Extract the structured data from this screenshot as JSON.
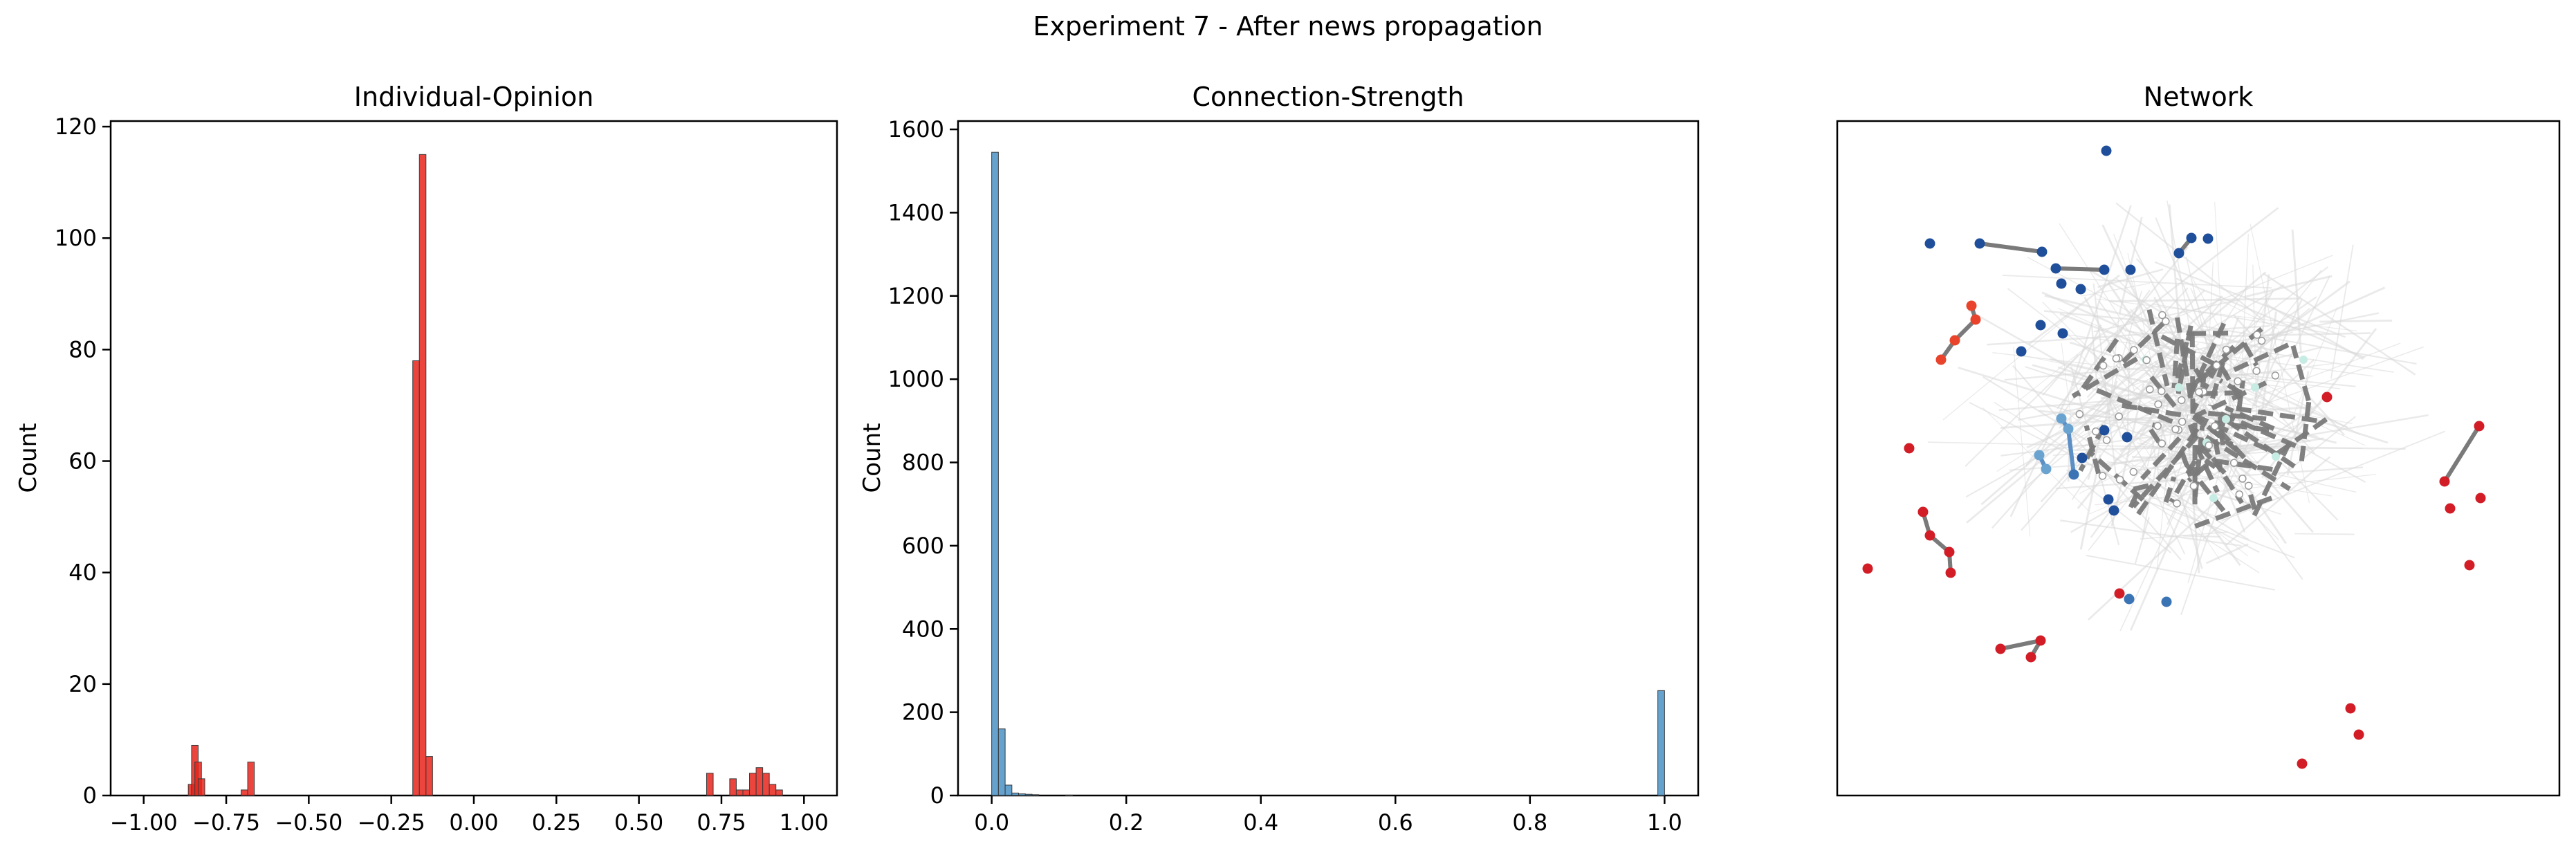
{
  "figure": {
    "suptitle": "Experiment 7 - After news propagation"
  },
  "chart_data": [
    {
      "type": "bar",
      "title": "Individual-Opinion",
      "xlabel": "",
      "ylabel": "Count",
      "xlim": [
        -1.1,
        1.1
      ],
      "ylim": [
        0,
        121
      ],
      "xticks": [
        "-1.00",
        "-0.75",
        "-0.50",
        "-0.25",
        "0.00",
        "0.25",
        "0.50",
        "0.75",
        "1.00"
      ],
      "yticks": [
        "0",
        "20",
        "40",
        "60",
        "80",
        "100",
        "120"
      ],
      "color": "#e8251b",
      "bins": [
        {
          "x": -0.855,
          "count": 2
        },
        {
          "x": -0.845,
          "count": 9
        },
        {
          "x": -0.835,
          "count": 6
        },
        {
          "x": -0.825,
          "count": 3
        },
        {
          "x": -0.695,
          "count": 1
        },
        {
          "x": -0.675,
          "count": 6
        },
        {
          "x": -0.175,
          "count": 78
        },
        {
          "x": -0.155,
          "count": 115
        },
        {
          "x": -0.135,
          "count": 7
        },
        {
          "x": 0.715,
          "count": 4
        },
        {
          "x": 0.785,
          "count": 3
        },
        {
          "x": 0.805,
          "count": 1
        },
        {
          "x": 0.825,
          "count": 1
        },
        {
          "x": 0.845,
          "count": 4
        },
        {
          "x": 0.865,
          "count": 5
        },
        {
          "x": 0.885,
          "count": 4
        },
        {
          "x": 0.905,
          "count": 2
        },
        {
          "x": 0.925,
          "count": 1
        }
      ]
    },
    {
      "type": "bar",
      "title": "Connection-Strength",
      "xlabel": "",
      "ylabel": "Count",
      "xlim": [
        -0.05,
        1.05
      ],
      "ylim": [
        0,
        1620
      ],
      "xticks": [
        "0.0",
        "0.2",
        "0.4",
        "0.6",
        "0.8",
        "1.0"
      ],
      "yticks": [
        "0",
        "200",
        "400",
        "600",
        "800",
        "1000",
        "1200",
        "1400",
        "1600"
      ],
      "color": "#4b92c6",
      "bins": [
        {
          "x": 0.005,
          "count": 1545
        },
        {
          "x": 0.015,
          "count": 160
        },
        {
          "x": 0.025,
          "count": 25
        },
        {
          "x": 0.035,
          "count": 6
        },
        {
          "x": 0.045,
          "count": 4
        },
        {
          "x": 0.055,
          "count": 3
        },
        {
          "x": 0.065,
          "count": 2
        },
        {
          "x": 0.115,
          "count": 1
        },
        {
          "x": 0.995,
          "count": 252
        }
      ]
    },
    {
      "type": "network",
      "title": "Network",
      "node_colors": [
        "#1f4e9a",
        "#3b74b4",
        "#6aa3d0",
        "#d21c26",
        "#e9442b",
        "#c7ece4"
      ],
      "edge_colors": [
        "#7a7a7a",
        "#d9d9d9",
        "#5b8fc5"
      ]
    }
  ]
}
